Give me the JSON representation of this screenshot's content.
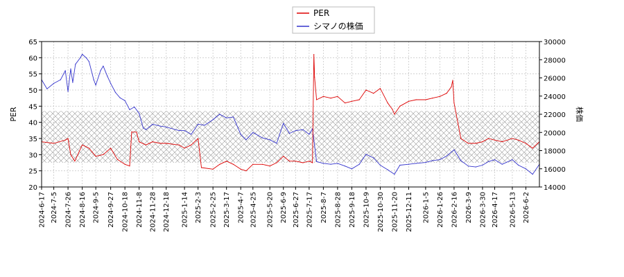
{
  "chart_data": {
    "type": "line",
    "legend": {
      "placement": "top-center",
      "entries": [
        "PER",
        "シマノの株価"
      ]
    },
    "colors": {
      "PER": "#dd0000",
      "price": "#3333cc",
      "band": "#999999"
    },
    "grid": true,
    "y_left": {
      "label": "PER",
      "range": [
        20,
        65
      ],
      "ticks": [
        20,
        25,
        30,
        35,
        40,
        45,
        50,
        55,
        60,
        65
      ]
    },
    "y_right": {
      "label": "株価",
      "range": [
        14000,
        30000
      ],
      "ticks": [
        14000,
        16000,
        18000,
        20000,
        22000,
        24000,
        26000,
        28000,
        30000
      ]
    },
    "per_band": {
      "low": 27.5,
      "high": 43.5
    },
    "x_range": [
      "2024-06-17",
      "2026-06-22"
    ],
    "x_ticks": [
      "2024-6-17",
      "2024-7-5",
      "2024-7-26",
      "2024-8-16",
      "2024-9-5",
      "2024-9-27",
      "2024-10-18",
      "2024-11-8",
      "2024-11-28",
      "2024-12-18",
      "2025-1-14",
      "2025-2-3",
      "2025-2-25",
      "2025-3-17",
      "2025-4-7",
      "2025-4-25",
      "2025-5-20",
      "2025-6-9",
      "2025-6-27",
      "2025-7-17",
      "2025-8-7",
      "2025-8-28",
      "2025-9-18",
      "2025-10-9",
      "2025-10-30",
      "2025-11-20",
      "2025-12-11",
      "2026-1-5",
      "2026-1-26",
      "2026-2-16",
      "2026-3-9",
      "2026-3-30",
      "2026-4-17",
      "2026-5-13",
      "2026-6-2"
    ],
    "series": [
      {
        "name": "PER",
        "axis": "left",
        "x": [
          "2024-06-17",
          "2024-07-05",
          "2024-07-22",
          "2024-07-26",
          "2024-07-30",
          "2024-08-05",
          "2024-08-16",
          "2024-08-26",
          "2024-09-05",
          "2024-09-16",
          "2024-09-27",
          "2024-10-07",
          "2024-10-18",
          "2024-10-25",
          "2024-10-28",
          "2024-11-04",
          "2024-11-08",
          "2024-11-18",
          "2024-11-28",
          "2024-12-09",
          "2024-12-18",
          "2025-01-06",
          "2025-01-14",
          "2025-01-24",
          "2025-02-03",
          "2025-02-08",
          "2025-02-25",
          "2025-03-07",
          "2025-03-17",
          "2025-03-27",
          "2025-04-07",
          "2025-04-15",
          "2025-04-25",
          "2025-05-09",
          "2025-05-20",
          "2025-05-30",
          "2025-06-09",
          "2025-06-18",
          "2025-06-27",
          "2025-07-08",
          "2025-07-17",
          "2025-07-22",
          "2025-07-24",
          "2025-07-25",
          "2025-07-28",
          "2025-08-07",
          "2025-08-18",
          "2025-08-28",
          "2025-09-08",
          "2025-09-18",
          "2025-09-29",
          "2025-10-09",
          "2025-10-20",
          "2025-10-30",
          "2025-11-10",
          "2025-11-17",
          "2025-11-20",
          "2025-11-28",
          "2025-12-11",
          "2025-12-22",
          "2026-01-05",
          "2026-01-15",
          "2026-01-26",
          "2026-02-05",
          "2026-02-12",
          "2026-02-14",
          "2026-02-16",
          "2026-02-26",
          "2026-03-09",
          "2026-03-20",
          "2026-03-30",
          "2026-04-08",
          "2026-04-17",
          "2026-04-28",
          "2026-05-13",
          "2026-05-22",
          "2026-06-02",
          "2026-06-12",
          "2026-06-22"
        ],
        "values": [
          34,
          33.5,
          34.5,
          35,
          30,
          28,
          33,
          32,
          29.5,
          30,
          32,
          28.5,
          27,
          26.5,
          37,
          37,
          34,
          33,
          34,
          33.5,
          33.5,
          33,
          32,
          33,
          35,
          26,
          25.5,
          27,
          28,
          27,
          25.5,
          25,
          27,
          27,
          26.5,
          27.5,
          29.5,
          28,
          28,
          27.5,
          28,
          27.5,
          61,
          54,
          47,
          48,
          47.5,
          48,
          46,
          46.5,
          47,
          50,
          49,
          50.5,
          46,
          44,
          42.5,
          45,
          46.5,
          47,
          47,
          47.5,
          48,
          49,
          51,
          53,
          46,
          35,
          33.5,
          33.5,
          34,
          35,
          34.5,
          34,
          35,
          34.5,
          33.5,
          32,
          34
        ]
      },
      {
        "name": "シマノの株価",
        "axis": "right",
        "x": [
          "2024-06-17",
          "2024-06-25",
          "2024-07-05",
          "2024-07-15",
          "2024-07-22",
          "2024-07-26",
          "2024-07-30",
          "2024-08-02",
          "2024-08-06",
          "2024-08-13",
          "2024-08-16",
          "2024-08-22",
          "2024-08-26",
          "2024-09-02",
          "2024-09-05",
          "2024-09-12",
          "2024-09-16",
          "2024-09-22",
          "2024-09-27",
          "2024-10-04",
          "2024-10-11",
          "2024-10-18",
          "2024-10-25",
          "2024-11-01",
          "2024-11-08",
          "2024-11-14",
          "2024-11-18",
          "2024-11-28",
          "2024-12-09",
          "2024-12-18",
          "2025-01-06",
          "2025-01-14",
          "2025-01-24",
          "2025-02-03",
          "2025-02-13",
          "2025-02-25",
          "2025-03-07",
          "2025-03-17",
          "2025-03-27",
          "2025-04-07",
          "2025-04-15",
          "2025-04-25",
          "2025-05-09",
          "2025-05-20",
          "2025-05-30",
          "2025-06-09",
          "2025-06-18",
          "2025-06-27",
          "2025-07-08",
          "2025-07-17",
          "2025-07-22",
          "2025-07-28",
          "2025-08-07",
          "2025-08-18",
          "2025-08-28",
          "2025-09-08",
          "2025-09-18",
          "2025-09-29",
          "2025-10-09",
          "2025-10-20",
          "2025-10-30",
          "2025-11-10",
          "2025-11-20",
          "2025-11-28",
          "2025-12-11",
          "2025-12-22",
          "2026-01-05",
          "2026-01-15",
          "2026-01-26",
          "2026-02-05",
          "2026-02-16",
          "2026-02-26",
          "2026-03-09",
          "2026-03-20",
          "2026-03-30",
          "2026-04-08",
          "2026-04-17",
          "2026-04-28",
          "2026-05-13",
          "2026-05-22",
          "2026-06-02",
          "2026-06-12",
          "2026-06-22"
        ],
        "values": [
          25800,
          24800,
          25400,
          25800,
          26800,
          24500,
          27000,
          25500,
          27500,
          28200,
          28600,
          28200,
          27800,
          25800,
          25200,
          26800,
          27300,
          26200,
          25400,
          24400,
          23800,
          23500,
          22500,
          22800,
          22100,
          20500,
          20300,
          20900,
          20700,
          20600,
          20200,
          20200,
          19800,
          20900,
          20800,
          21400,
          22000,
          21600,
          21700,
          19800,
          19200,
          20000,
          19400,
          19200,
          18800,
          21000,
          19900,
          20200,
          20300,
          19800,
          20400,
          16800,
          16600,
          16500,
          16600,
          16300,
          16000,
          16500,
          17600,
          17200,
          16400,
          15900,
          15400,
          16400,
          16500,
          16600,
          16700,
          16900,
          17000,
          17400,
          18100,
          16900,
          16300,
          16200,
          16400,
          16800,
          17000,
          16500,
          17000,
          16400,
          16000,
          15400,
          16500
        ]
      }
    ]
  }
}
